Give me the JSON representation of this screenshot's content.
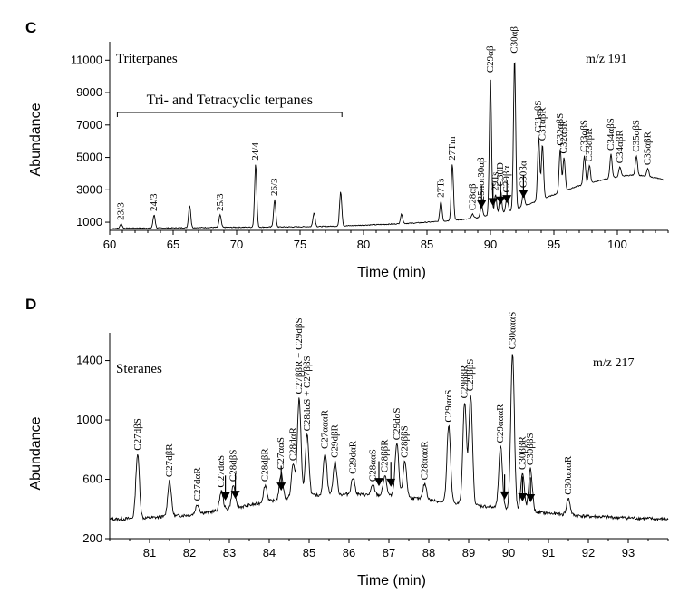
{
  "panels": [
    {
      "letter": "C"
    },
    {
      "letter": "D"
    }
  ],
  "chart_data": [
    {
      "type": "line",
      "panel": "C",
      "title": "Triterpanes",
      "ion": "m/z 191",
      "xlabel": "Time (min)",
      "ylabel": "Abundance",
      "xlim": [
        60,
        104
      ],
      "ylim": [
        500,
        11800
      ],
      "xticks": [
        60,
        65,
        70,
        75,
        80,
        85,
        90,
        95,
        100
      ],
      "yticks": [
        1000,
        3000,
        5000,
        7000,
        9000,
        11000
      ],
      "bracket": {
        "label": "Tri- and Tetracyclic terpanes",
        "from": 60.6,
        "to": 78.3
      },
      "baseline": [
        [
          60.2,
          620
        ],
        [
          62,
          640
        ],
        [
          64,
          640
        ],
        [
          66,
          660
        ],
        [
          68,
          680
        ],
        [
          70,
          690
        ],
        [
          72,
          700
        ],
        [
          74,
          710
        ],
        [
          76,
          730
        ],
        [
          78,
          760
        ],
        [
          80,
          820
        ],
        [
          82,
          880
        ],
        [
          84,
          950
        ],
        [
          86,
          1050
        ],
        [
          88,
          1180
        ],
        [
          89,
          1280
        ],
        [
          90,
          1450
        ],
        [
          91,
          1600
        ],
        [
          92,
          1800
        ],
        [
          93,
          2100
        ],
        [
          94,
          2400
        ],
        [
          95,
          2700
        ],
        [
          96,
          3000
        ],
        [
          97,
          3250
        ],
        [
          98,
          3450
        ],
        [
          99,
          3650
        ],
        [
          100,
          3800
        ],
        [
          101,
          3900
        ],
        [
          101.6,
          3900
        ],
        [
          102.5,
          3800
        ],
        [
          103,
          3750
        ],
        [
          103.7,
          3600
        ]
      ],
      "peaks": [
        {
          "t": 60.9,
          "h": 900,
          "label": "23/3"
        },
        {
          "t": 63.5,
          "h": 1450,
          "label": "24/3"
        },
        {
          "t": 66.3,
          "h": 2050,
          "label": ""
        },
        {
          "t": 68.7,
          "h": 1450,
          "label": "25/3"
        },
        {
          "t": 71.5,
          "h": 4600,
          "label": "24/4"
        },
        {
          "t": 73.0,
          "h": 2400,
          "label": "26/3"
        },
        {
          "t": 76.1,
          "h": 1600,
          "label": ""
        },
        {
          "t": 78.2,
          "h": 2900,
          "label": ""
        },
        {
          "t": 83.0,
          "h": 1500,
          "label": ""
        },
        {
          "t": 86.1,
          "h": 2300,
          "label": "27Ts"
        },
        {
          "t": 87.0,
          "h": 4600,
          "label": "27Tm"
        },
        {
          "t": 88.6,
          "h": 1500,
          "label": "C28αβ"
        },
        {
          "t": 89.3,
          "h": 2100,
          "label": "25nor30αβ"
        },
        {
          "t": 90.0,
          "h": 10000,
          "label": "C29αβ"
        },
        {
          "t": 90.4,
          "h": 2700,
          "label": "29Ts"
        },
        {
          "t": 90.8,
          "h": 3000,
          "label": "C30D"
        },
        {
          "t": 91.3,
          "h": 2600,
          "label": "C29βα"
        },
        {
          "t": 91.9,
          "h": 11200,
          "label": "C30αβ"
        },
        {
          "t": 92.6,
          "h": 2900,
          "label": "C30βα"
        },
        {
          "t": 93.8,
          "h": 6300,
          "label": "C31αβS"
        },
        {
          "t": 94.1,
          "h": 5800,
          "label": "C31αβR"
        },
        {
          "t": 95.5,
          "h": 5500,
          "label": "C32αβS"
        },
        {
          "t": 95.8,
          "h": 5000,
          "label": "C32αβR"
        },
        {
          "t": 97.4,
          "h": 5100,
          "label": "C33αβS"
        },
        {
          "t": 97.8,
          "h": 4500,
          "label": "C33αβR"
        },
        {
          "t": 99.5,
          "h": 5200,
          "label": "C34αβS"
        },
        {
          "t": 100.2,
          "h": 4400,
          "label": "C34αβR"
        },
        {
          "t": 101.5,
          "h": 5100,
          "label": "C35αβS"
        },
        {
          "t": 102.4,
          "h": 4300,
          "label": "C35αβR"
        }
      ],
      "arrows": [
        89.3,
        90.2,
        90.8,
        91.3,
        92.6
      ]
    },
    {
      "type": "line",
      "panel": "D",
      "title": "Steranes",
      "ion": "m/z 217",
      "xlabel": "Time (min)",
      "ylabel": "Abundance",
      "xlim": [
        80.0,
        94.0
      ],
      "ylim": [
        200,
        1550
      ],
      "xticks": [
        81,
        82,
        83,
        84,
        85,
        86,
        87,
        88,
        89,
        90,
        91,
        92,
        93
      ],
      "yticks": [
        200,
        600,
        1000,
        1400
      ],
      "baseline": [
        [
          80.0,
          330
        ],
        [
          81,
          340
        ],
        [
          82,
          360
        ],
        [
          83,
          400
        ],
        [
          84,
          450
        ],
        [
          85,
          490
        ],
        [
          86,
          500
        ],
        [
          87,
          490
        ],
        [
          88,
          460
        ],
        [
          89,
          430
        ],
        [
          90,
          400
        ],
        [
          91,
          370
        ],
        [
          92,
          350
        ],
        [
          93,
          340
        ],
        [
          94.0,
          330
        ]
      ],
      "peaks": [
        {
          "t": 80.7,
          "h": 770,
          "label": "C27dβS"
        },
        {
          "t": 81.5,
          "h": 590,
          "label": "C27dβR"
        },
        {
          "t": 82.2,
          "h": 430,
          "label": "C27dαR"
        },
        {
          "t": 82.8,
          "h": 520,
          "label": "C27dαS"
        },
        {
          "t": 83.1,
          "h": 560,
          "label": "C28dβS"
        },
        {
          "t": 83.9,
          "h": 560,
          "label": "C28dβR"
        },
        {
          "t": 84.3,
          "h": 640,
          "label": "C27ααS"
        },
        {
          "t": 84.6,
          "h": 700,
          "label": "C28dαR"
        },
        {
          "t": 84.75,
          "h": 1150,
          "label": "C27ββR + C29dβS"
        },
        {
          "t": 84.95,
          "h": 900,
          "label": "C28dαS + C27ββS"
        },
        {
          "t": 85.4,
          "h": 780,
          "label": "C27αααR"
        },
        {
          "t": 85.65,
          "h": 720,
          "label": "C29dβR"
        },
        {
          "t": 86.1,
          "h": 610,
          "label": "C29dαR"
        },
        {
          "t": 86.6,
          "h": 560,
          "label": "C28ααS"
        },
        {
          "t": 86.9,
          "h": 620,
          "label": "C28ββR"
        },
        {
          "t": 87.2,
          "h": 840,
          "label": "C29dαS"
        },
        {
          "t": 87.4,
          "h": 720,
          "label": "C28ββS"
        },
        {
          "t": 87.9,
          "h": 570,
          "label": "C28αααR"
        },
        {
          "t": 88.5,
          "h": 960,
          "label": "C29ααS"
        },
        {
          "t": 88.9,
          "h": 1120,
          "label": "C29ββR"
        },
        {
          "t": 89.05,
          "h": 1170,
          "label": "C29ββS"
        },
        {
          "t": 89.8,
          "h": 820,
          "label": "C29αααR"
        },
        {
          "t": 90.1,
          "h": 1450,
          "label": "C30αααS"
        },
        {
          "t": 90.35,
          "h": 640,
          "label": "C30ββR"
        },
        {
          "t": 90.55,
          "h": 670,
          "label": "C30ββS"
        },
        {
          "t": 91.5,
          "h": 470,
          "label": "C30αααR"
        }
      ],
      "arrows": [
        82.9,
        83.15,
        84.3,
        86.75,
        87.05,
        89.9,
        90.35,
        90.55
      ]
    }
  ]
}
